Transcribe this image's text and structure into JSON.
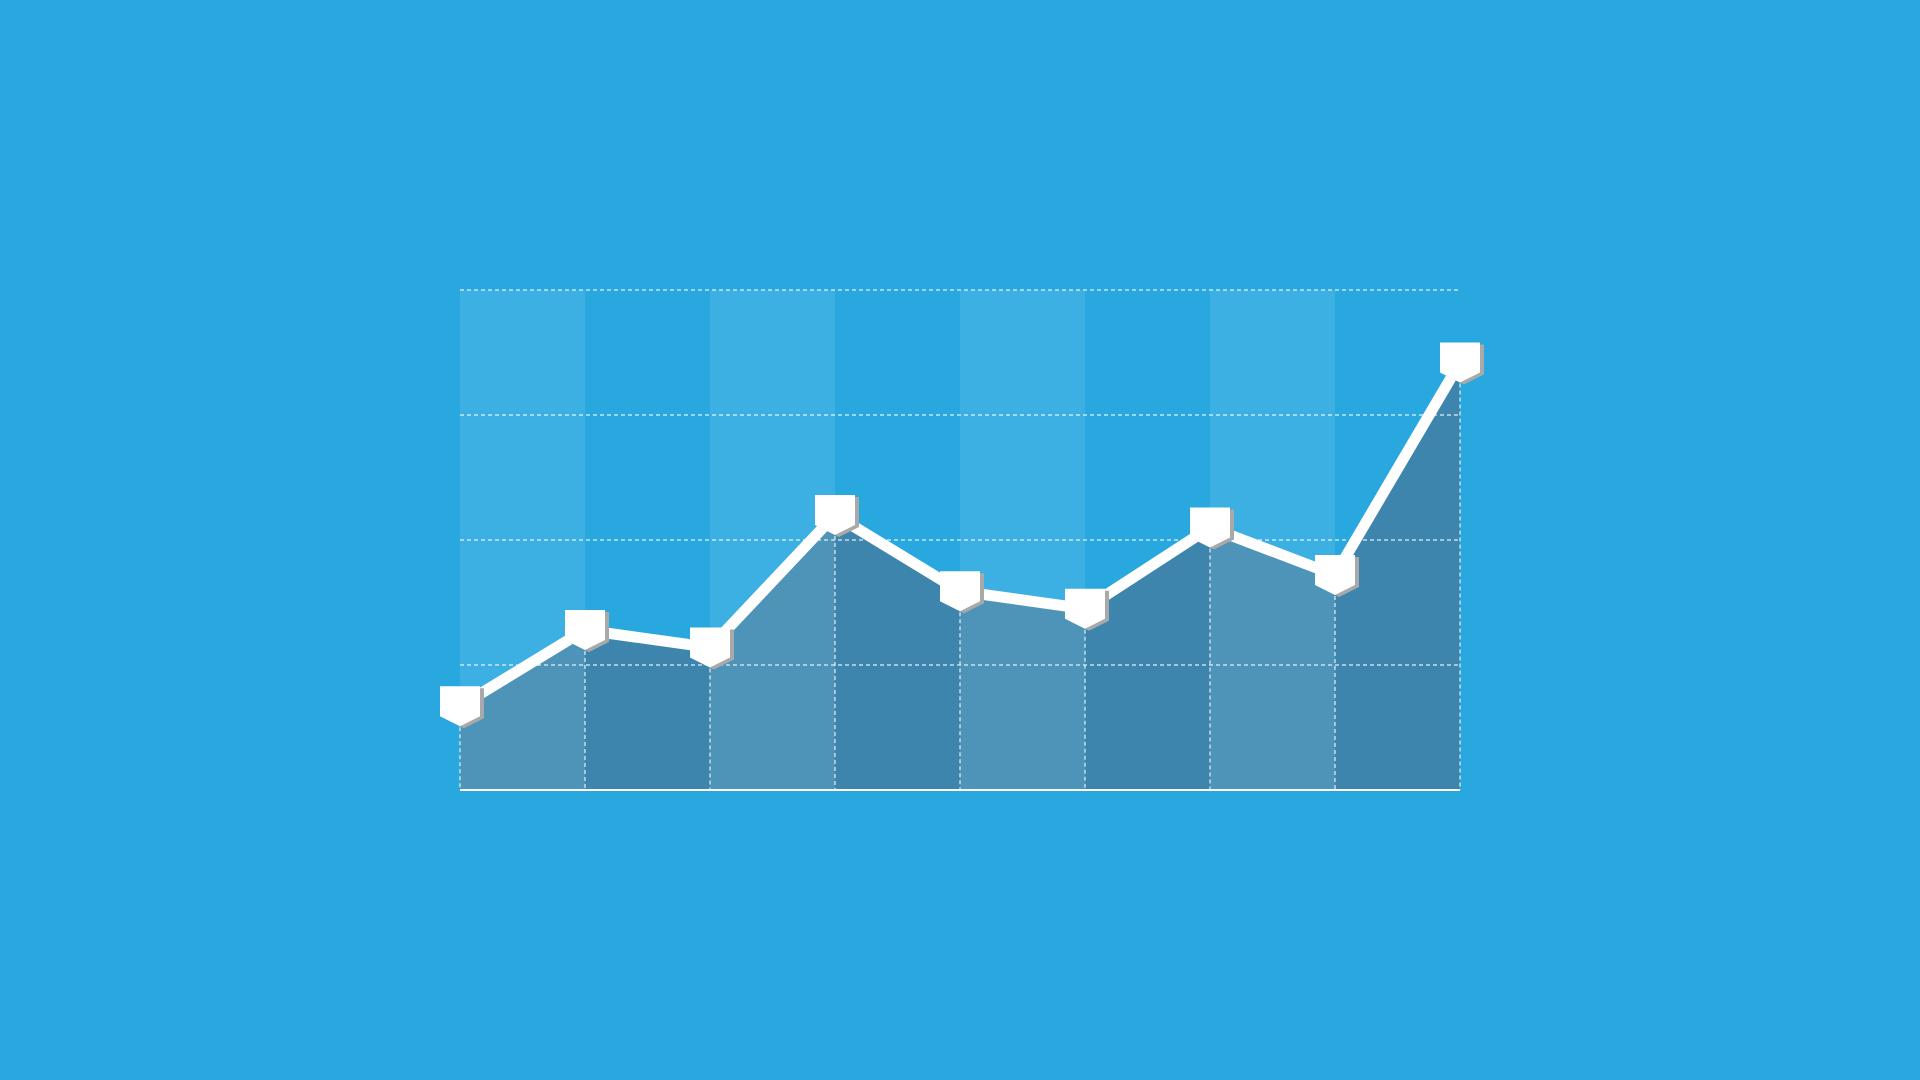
{
  "colors": {
    "background": "#29A8E0",
    "band_light": "#3CAFE3",
    "area_light": "#4E93B8",
    "area_dark": "#3D85AD",
    "line": "#FFFFFF",
    "marker": "#FFFFFF",
    "marker_shadow": "#A9A9A9",
    "grid": "#FFFFFF"
  },
  "chart_data": {
    "type": "area",
    "x": [
      0,
      1,
      2,
      3,
      4,
      5,
      6,
      7,
      8
    ],
    "series": [
      {
        "values": [
          0.67,
          1.28,
          1.14,
          2.2,
          1.59,
          1.45,
          2.1,
          1.72,
          3.42
        ]
      }
    ],
    "xlim": [
      0,
      8
    ],
    "ylim": [
      0,
      4
    ],
    "grid": true,
    "title": "",
    "xlabel": "",
    "ylabel": "",
    "legend": "none",
    "marker": "pentagon"
  }
}
